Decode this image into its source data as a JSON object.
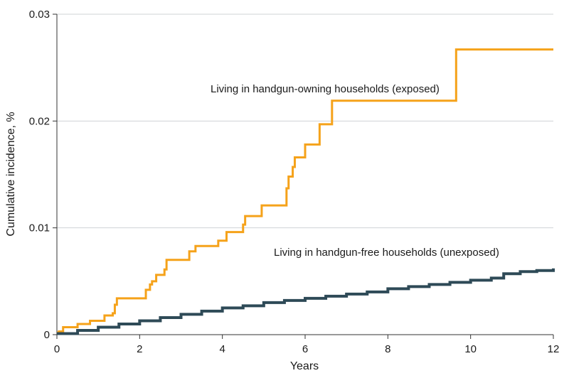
{
  "chart_data": {
    "type": "line",
    "step": true,
    "xlabel": "Years",
    "ylabel": "Cumulative incidence, %",
    "xlim": [
      0,
      12
    ],
    "ylim": [
      0,
      0.03
    ],
    "xticks": [
      0,
      2,
      4,
      6,
      8,
      10,
      12
    ],
    "xtick_labels": [
      "0",
      "2",
      "4",
      "6",
      "8",
      "10",
      "12"
    ],
    "yticks": [
      0,
      0.01,
      0.02,
      0.03
    ],
    "ytick_labels": [
      "0",
      "0.01",
      "0.02",
      "0.03"
    ],
    "grid": "horizontal",
    "series": [
      {
        "name": "Living in handgun-owning households (exposed)",
        "color": "#f5a21a",
        "x": [
          0,
          0.05,
          0.15,
          0.5,
          0.8,
          1.15,
          1.35,
          1.4,
          1.45,
          2.15,
          2.25,
          2.3,
          2.4,
          2.6,
          2.65,
          3.2,
          3.35,
          3.9,
          4.1,
          4.5,
          4.55,
          4.95,
          5.55,
          5.6,
          5.7,
          5.75,
          6.0,
          6.35,
          6.65,
          9.65,
          12.0
        ],
        "y": [
          0.0002,
          0.0003,
          0.0007,
          0.001,
          0.0013,
          0.0018,
          0.002,
          0.0028,
          0.0034,
          0.0042,
          0.0047,
          0.005,
          0.0056,
          0.0061,
          0.007,
          0.0078,
          0.0083,
          0.0088,
          0.0096,
          0.0103,
          0.0111,
          0.0121,
          0.0137,
          0.0148,
          0.0157,
          0.0166,
          0.0178,
          0.0197,
          0.0219,
          0.0267,
          0.0267
        ]
      },
      {
        "name": "Living in handgun-free households (unexposed)",
        "color": "#2e4a57",
        "x": [
          0,
          0.5,
          1.0,
          1.5,
          2.0,
          2.5,
          3.0,
          3.5,
          4.0,
          4.5,
          5.0,
          5.5,
          6.0,
          6.5,
          7.0,
          7.5,
          8.0,
          8.5,
          9.0,
          9.5,
          10.0,
          10.5,
          10.8,
          11.2,
          11.6,
          12.0
        ],
        "y": [
          0.0001,
          0.0004,
          0.0007,
          0.001,
          0.0013,
          0.0016,
          0.0019,
          0.0022,
          0.0025,
          0.0027,
          0.003,
          0.0032,
          0.0034,
          0.0036,
          0.0038,
          0.004,
          0.0043,
          0.0045,
          0.0047,
          0.0049,
          0.0051,
          0.0053,
          0.0057,
          0.0059,
          0.006,
          0.0062
        ]
      }
    ]
  }
}
